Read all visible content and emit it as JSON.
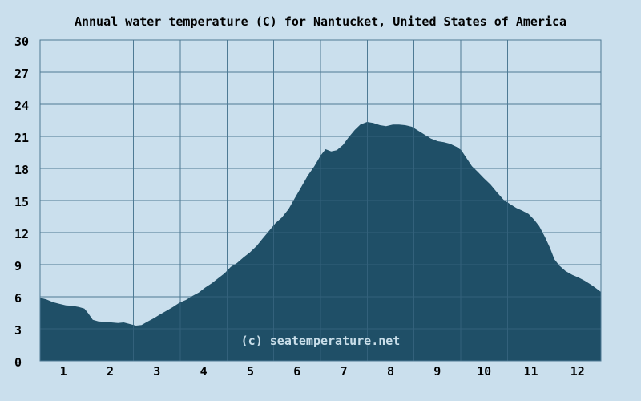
{
  "title": "Annual water temperature (C) for Nantucket, United States of America",
  "watermark": "(c) seatemperature.net",
  "colors": {
    "background": "#cadfed",
    "area_fill": "#1f4f67",
    "grid": "#4e7a94",
    "grid_over_fill": "#33617b",
    "text": "#000000",
    "watermark": "#c9dee9"
  },
  "chart_data": {
    "type": "area",
    "title": "Annual water temperature (C) for Nantucket, United States of America",
    "xlabel": "",
    "ylabel": "",
    "x_ticks": [
      "1",
      "2",
      "3",
      "4",
      "5",
      "6",
      "7",
      "8",
      "9",
      "10",
      "11",
      "12"
    ],
    "y_ticks": [
      "30",
      "27",
      "24",
      "21",
      "18",
      "15",
      "12",
      "9",
      "6",
      "3",
      "0"
    ],
    "ylim": [
      0,
      30
    ],
    "x_months": [
      0,
      12
    ],
    "grid": true,
    "legend": "none",
    "units": "C",
    "series": [
      {
        "name": "water temperature (C)",
        "points": [
          [
            0.0,
            5.9
          ],
          [
            0.011,
            5.75
          ],
          [
            0.023,
            5.5
          ],
          [
            0.034,
            5.35
          ],
          [
            0.046,
            5.2
          ],
          [
            0.057,
            5.15
          ],
          [
            0.069,
            5.05
          ],
          [
            0.079,
            4.9
          ],
          [
            0.086,
            4.45
          ],
          [
            0.094,
            3.85
          ],
          [
            0.104,
            3.7
          ],
          [
            0.116,
            3.65
          ],
          [
            0.127,
            3.6
          ],
          [
            0.139,
            3.55
          ],
          [
            0.149,
            3.6
          ],
          [
            0.16,
            3.45
          ],
          [
            0.171,
            3.3
          ],
          [
            0.181,
            3.35
          ],
          [
            0.191,
            3.65
          ],
          [
            0.203,
            4.0
          ],
          [
            0.214,
            4.35
          ],
          [
            0.226,
            4.7
          ],
          [
            0.237,
            5.05
          ],
          [
            0.249,
            5.45
          ],
          [
            0.26,
            5.7
          ],
          [
            0.271,
            6.05
          ],
          [
            0.283,
            6.4
          ],
          [
            0.294,
            6.85
          ],
          [
            0.306,
            7.25
          ],
          [
            0.317,
            7.7
          ],
          [
            0.329,
            8.2
          ],
          [
            0.34,
            8.8
          ],
          [
            0.351,
            9.15
          ],
          [
            0.363,
            9.7
          ],
          [
            0.374,
            10.15
          ],
          [
            0.386,
            10.75
          ],
          [
            0.397,
            11.45
          ],
          [
            0.409,
            12.2
          ],
          [
            0.42,
            12.9
          ],
          [
            0.431,
            13.4
          ],
          [
            0.443,
            14.2
          ],
          [
            0.454,
            15.2
          ],
          [
            0.466,
            16.3
          ],
          [
            0.477,
            17.3
          ],
          [
            0.489,
            18.2
          ],
          [
            0.5,
            19.2
          ],
          [
            0.509,
            19.8
          ],
          [
            0.519,
            19.6
          ],
          [
            0.529,
            19.7
          ],
          [
            0.54,
            20.2
          ],
          [
            0.55,
            20.9
          ],
          [
            0.561,
            21.6
          ],
          [
            0.571,
            22.1
          ],
          [
            0.583,
            22.35
          ],
          [
            0.594,
            22.25
          ],
          [
            0.606,
            22.05
          ],
          [
            0.617,
            21.95
          ],
          [
            0.629,
            22.1
          ],
          [
            0.64,
            22.1
          ],
          [
            0.651,
            22.05
          ],
          [
            0.663,
            21.9
          ],
          [
            0.674,
            21.55
          ],
          [
            0.686,
            21.15
          ],
          [
            0.697,
            20.8
          ],
          [
            0.709,
            20.55
          ],
          [
            0.72,
            20.45
          ],
          [
            0.731,
            20.3
          ],
          [
            0.743,
            20.0
          ],
          [
            0.751,
            19.7
          ],
          [
            0.76,
            19.0
          ],
          [
            0.77,
            18.2
          ],
          [
            0.78,
            17.7
          ],
          [
            0.791,
            17.1
          ],
          [
            0.803,
            16.5
          ],
          [
            0.814,
            15.8
          ],
          [
            0.826,
            15.1
          ],
          [
            0.837,
            14.7
          ],
          [
            0.849,
            14.3
          ],
          [
            0.86,
            14.05
          ],
          [
            0.871,
            13.75
          ],
          [
            0.881,
            13.2
          ],
          [
            0.89,
            12.6
          ],
          [
            0.9,
            11.6
          ],
          [
            0.909,
            10.6
          ],
          [
            0.917,
            9.5
          ],
          [
            0.926,
            8.9
          ],
          [
            0.937,
            8.4
          ],
          [
            0.949,
            8.05
          ],
          [
            0.96,
            7.8
          ],
          [
            0.971,
            7.5
          ],
          [
            0.983,
            7.1
          ],
          [
            0.991,
            6.8
          ],
          [
            1.0,
            6.45
          ]
        ]
      }
    ]
  }
}
